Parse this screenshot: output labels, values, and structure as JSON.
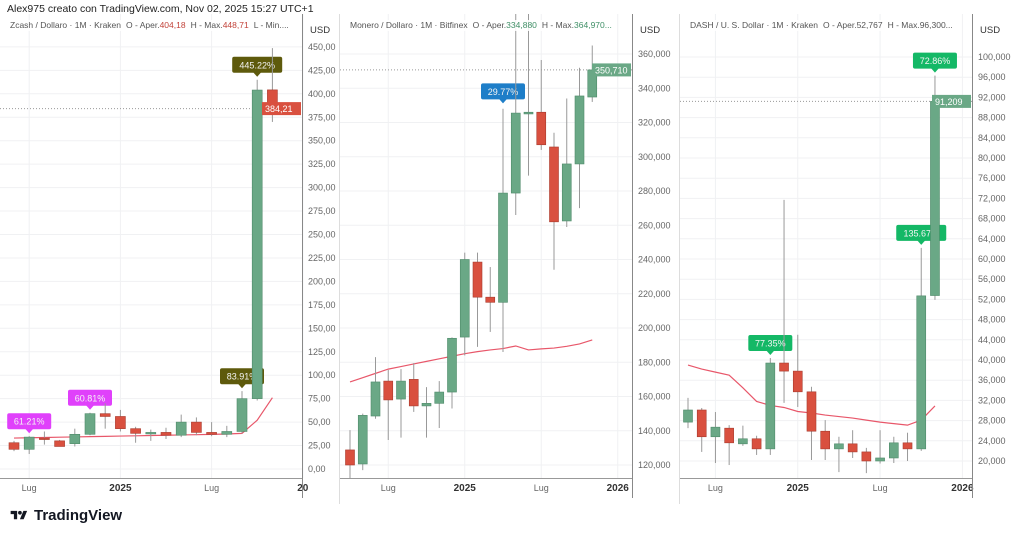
{
  "header": {
    "attribution": "Alex975 creato con TradingView.com, Nov 02, 2025 15:27 UTC+1"
  },
  "footer": {
    "logo_text": "TradingView"
  },
  "colors": {
    "up": "#6aa886",
    "down": "#d9503f",
    "ma": "#e8576a",
    "grid": "#f0f1f3",
    "axis": "#b2b5be",
    "text": "#555"
  },
  "chart_data": [
    {
      "type": "candlestick",
      "legend": {
        "symbol": "Zcash / Dollaro · 1M · Kraken",
        "open_label": "O - Aper.",
        "open": "404,18",
        "high_label": "H - Max.",
        "high": "448,71",
        "low_label": "L - Min....",
        "value_color": "#c2433a"
      },
      "currency": "USD",
      "y_ticks": [
        "450,00",
        "425,00",
        "400,00",
        "375,00",
        "350,00",
        "325,00",
        "300,00",
        "275,00",
        "250,00",
        "225,00",
        "200,00",
        "175,00",
        "150,00",
        "125,00",
        "100,00",
        "75,00",
        "50,00",
        "25,00",
        "0,00"
      ],
      "y_tick_values": [
        450,
        425,
        400,
        375,
        350,
        325,
        300,
        275,
        250,
        225,
        200,
        175,
        150,
        125,
        100,
        75,
        50,
        25,
        0
      ],
      "x_labels": [
        {
          "text": "Lug",
          "month": "2024-07"
        },
        {
          "text": "2025",
          "month": "2025-01"
        },
        {
          "text": "Lug",
          "month": "2025-07"
        },
        {
          "text": "20",
          "month": "2026-01"
        }
      ],
      "start_month": "2024-06",
      "candles": [
        {
          "o": 28,
          "h": 30,
          "l": 19,
          "c": 21
        },
        {
          "o": 21,
          "h": 35,
          "l": 16,
          "c": 34
        },
        {
          "o": 33,
          "h": 40,
          "l": 26,
          "c": 32
        },
        {
          "o": 30,
          "h": 31,
          "l": 24,
          "c": 24
        },
        {
          "o": 27,
          "h": 43,
          "l": 24,
          "c": 37
        },
        {
          "o": 37,
          "h": 60,
          "l": 36,
          "c": 59
        },
        {
          "o": 59,
          "h": 70,
          "l": 43,
          "c": 56
        },
        {
          "o": 56,
          "h": 63,
          "l": 40,
          "c": 43
        },
        {
          "o": 43,
          "h": 45,
          "l": 28,
          "c": 38
        },
        {
          "o": 38,
          "h": 42,
          "l": 30,
          "c": 39
        },
        {
          "o": 39,
          "h": 44,
          "l": 32,
          "c": 36
        },
        {
          "o": 36,
          "h": 58,
          "l": 34,
          "c": 50
        },
        {
          "o": 50,
          "h": 55,
          "l": 36,
          "c": 39
        },
        {
          "o": 39,
          "h": 50,
          "l": 35,
          "c": 37
        },
        {
          "o": 37,
          "h": 46,
          "l": 34,
          "c": 40
        },
        {
          "o": 40,
          "h": 83,
          "l": 38,
          "c": 75
        },
        {
          "o": 75,
          "h": 415,
          "l": 73,
          "c": 404
        },
        {
          "o": 404.18,
          "h": 448.71,
          "l": 370,
          "c": 384.21
        }
      ],
      "ma": [
        33,
        33.3,
        33.6,
        33.9,
        34.2,
        34.5,
        34.8,
        35.1,
        35.4,
        35.7,
        36,
        36.3,
        36.6,
        36.9,
        37.3,
        38,
        52,
        76
      ],
      "markers": [
        {
          "text": "61.21%",
          "index": 1,
          "price": 36,
          "color": "#e040fb"
        },
        {
          "text": "60.81%",
          "index": 5,
          "price": 61,
          "color": "#e040fb"
        },
        {
          "text": "83.91%",
          "index": 15,
          "price": 84,
          "color": "#5e5a0c"
        },
        {
          "text": "445.22%",
          "index": 16,
          "price": 416,
          "color": "#5e5a0c"
        }
      ],
      "price_tag": {
        "text": "384,21",
        "price": 384.21,
        "color": "#d9503f"
      }
    },
    {
      "type": "candlestick",
      "legend": {
        "symbol": "Monero / Dollaro · 1M · Bitfinex",
        "open_label": "O - Aper.",
        "open": "334,880",
        "high_label": "H - Max.",
        "high": "364,970...",
        "low_label": "",
        "value_color": "#3f8f66"
      },
      "currency": "USD",
      "y_ticks": [
        "360,000",
        "340,000",
        "320,000",
        "300,000",
        "280,000",
        "260,000",
        "240,000",
        "220,000",
        "200,000",
        "180,000",
        "160,000",
        "140,000",
        "120,000"
      ],
      "y_tick_values": [
        360000,
        340000,
        320000,
        300000,
        280000,
        260000,
        240000,
        220000,
        200000,
        180000,
        160000,
        140000,
        120000
      ],
      "x_labels": [
        {
          "text": "Lug",
          "month": "2024-07"
        },
        {
          "text": "2025",
          "month": "2025-01"
        },
        {
          "text": "Lug",
          "month": "2025-07"
        },
        {
          "text": "2026",
          "month": "2026-01"
        }
      ],
      "start_month": "2024-04",
      "candles": [
        {
          "o": 128800,
          "h": 140400,
          "l": 112000,
          "c": 120000
        },
        {
          "o": 120600,
          "h": 150000,
          "l": 117000,
          "c": 149000
        },
        {
          "o": 148600,
          "h": 183000,
          "l": 147000,
          "c": 168500
        },
        {
          "o": 169000,
          "h": 175500,
          "l": 134600,
          "c": 158000
        },
        {
          "o": 158500,
          "h": 176000,
          "l": 136000,
          "c": 169000
        },
        {
          "o": 170000,
          "h": 179500,
          "l": 151000,
          "c": 154500
        },
        {
          "o": 154500,
          "h": 165500,
          "l": 136000,
          "c": 156000
        },
        {
          "o": 156000,
          "h": 169000,
          "l": 141600,
          "c": 162600
        },
        {
          "o": 162600,
          "h": 194500,
          "l": 153000,
          "c": 194000
        },
        {
          "o": 194700,
          "h": 244000,
          "l": 184000,
          "c": 240000
        },
        {
          "o": 238500,
          "h": 244000,
          "l": 189000,
          "c": 218000
        },
        {
          "o": 218000,
          "h": 235600,
          "l": 197700,
          "c": 215000
        },
        {
          "o": 215000,
          "h": 328000,
          "l": 186000,
          "c": 278800
        },
        {
          "o": 278800,
          "h": 420000,
          "l": 266000,
          "c": 325500
        },
        {
          "o": 325000,
          "h": 420000,
          "l": 289000,
          "c": 326000
        },
        {
          "o": 326000,
          "h": 356500,
          "l": 304000,
          "c": 307000
        },
        {
          "o": 305700,
          "h": 314000,
          "l": 234000,
          "c": 262000
        },
        {
          "o": 262500,
          "h": 334000,
          "l": 259000,
          "c": 295800
        },
        {
          "o": 295800,
          "h": 352000,
          "l": 270000,
          "c": 335500
        },
        {
          "o": 334880,
          "h": 364970,
          "l": 332000,
          "c": 350710
        }
      ],
      "ma": [
        168500,
        171000,
        173500,
        176000,
        177500,
        179000,
        180500,
        182000,
        183500,
        185000,
        186200,
        187200,
        188000,
        189500,
        187200,
        187800,
        188300,
        189300,
        190700,
        193000
      ],
      "markers": [
        {
          "text": "29.77%",
          "index": 12,
          "price": 330000,
          "color": "#1e7ec8"
        }
      ],
      "price_tag": {
        "text": "350,710",
        "price": 350710,
        "color": "#6aa886"
      }
    },
    {
      "type": "candlestick",
      "legend": {
        "symbol": "DASH / U. S. Dollar · 1M · Kraken",
        "open_label": "O - Aper.",
        "open": "52,767",
        "high_label": "H - Max.",
        "high": "96,300...",
        "low_label": "",
        "value_color": "#555"
      },
      "currency": "USD",
      "y_ticks": [
        "100,000",
        "96,000",
        "92,000",
        "88,000",
        "84,000",
        "80,000",
        "76,000",
        "72,000",
        "68,000",
        "64,000",
        "60,000",
        "56,000",
        "52,000",
        "48,000",
        "44,000",
        "40,000",
        "36,000",
        "32,000",
        "28,000",
        "24,000",
        "20,000"
      ],
      "y_tick_values": [
        100000,
        96000,
        92000,
        88000,
        84000,
        80000,
        76000,
        72000,
        68000,
        64000,
        60000,
        56000,
        52000,
        48000,
        44000,
        40000,
        36000,
        32000,
        28000,
        24000,
        20000
      ],
      "x_labels": [
        {
          "text": "Lug",
          "month": "2024-07"
        },
        {
          "text": "2025",
          "month": "2025-01"
        },
        {
          "text": "Lug",
          "month": "2025-07"
        },
        {
          "text": "2026",
          "month": "2026-01"
        }
      ],
      "start_month": "2024-05",
      "candles": [
        {
          "o": 27700,
          "h": 32500,
          "l": 26500,
          "c": 30100
        },
        {
          "o": 30100,
          "h": 30500,
          "l": 21800,
          "c": 24800
        },
        {
          "o": 24800,
          "h": 29700,
          "l": 19600,
          "c": 26700
        },
        {
          "o": 26500,
          "h": 27100,
          "l": 19200,
          "c": 23600
        },
        {
          "o": 23400,
          "h": 27000,
          "l": 23000,
          "c": 24400
        },
        {
          "o": 24400,
          "h": 25000,
          "l": 21200,
          "c": 22400
        },
        {
          "o": 22400,
          "h": 40400,
          "l": 21200,
          "c": 39400
        },
        {
          "o": 39400,
          "h": 71700,
          "l": 31500,
          "c": 37800
        },
        {
          "o": 37800,
          "h": 45000,
          "l": 30700,
          "c": 33700
        },
        {
          "o": 33700,
          "h": 34700,
          "l": 20200,
          "c": 25900
        },
        {
          "o": 25900,
          "h": 28100,
          "l": 20200,
          "c": 22400
        },
        {
          "o": 22400,
          "h": 24800,
          "l": 17800,
          "c": 23400
        },
        {
          "o": 23400,
          "h": 26100,
          "l": 20600,
          "c": 21800
        },
        {
          "o": 21800,
          "h": 22600,
          "l": 17600,
          "c": 20000
        },
        {
          "o": 20000,
          "h": 26100,
          "l": 19500,
          "c": 20600
        },
        {
          "o": 20600,
          "h": 24800,
          "l": 19600,
          "c": 23600
        },
        {
          "o": 23600,
          "h": 25600,
          "l": 20000,
          "c": 22400
        },
        {
          "o": 22400,
          "h": 62200,
          "l": 22000,
          "c": 52700
        },
        {
          "o": 52767,
          "h": 96300,
          "l": 51900,
          "c": 91209
        }
      ],
      "ma": [
        39000,
        38200,
        37600,
        37000,
        34500,
        31800,
        31000,
        30600,
        29800,
        29500,
        29100,
        28800,
        28500,
        28100,
        27700,
        27400,
        27100,
        28100,
        30900
      ],
      "markers": [
        {
          "text": "77.35%",
          "index": 6,
          "price": 40600,
          "color": "#14b866"
        },
        {
          "text": "135.67%",
          "index": 17,
          "price": 62400,
          "color": "#14b866"
        },
        {
          "text": "72.86%",
          "index": 18,
          "price": 96500,
          "color": "#14b866"
        }
      ],
      "price_tag": {
        "text": "91,209",
        "price": 91209,
        "color": "#6aa886"
      }
    }
  ]
}
